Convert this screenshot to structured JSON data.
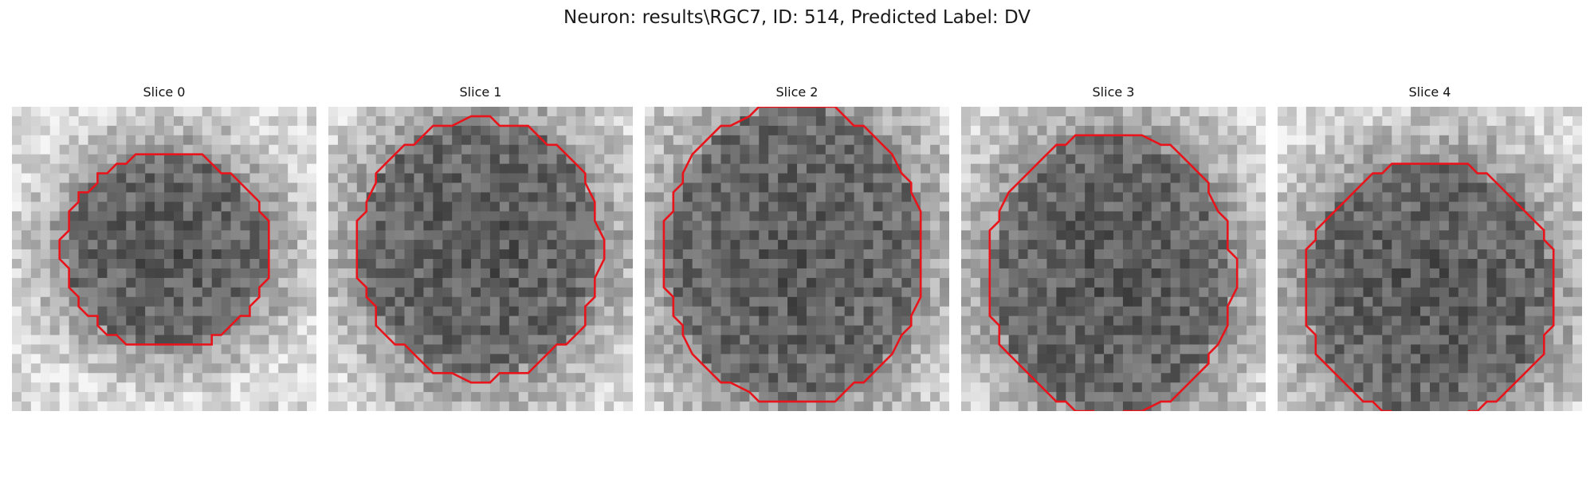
{
  "figure": {
    "title": "Neuron: results\\RGC7, ID: 514, Predicted Label: DV"
  },
  "panels": [
    {
      "title": "Slice 0"
    },
    {
      "title": "Slice 1"
    },
    {
      "title": "Slice 2"
    },
    {
      "title": "Slice 3"
    },
    {
      "title": "Slice 4"
    }
  ],
  "colors": {
    "contour": "#e8141b",
    "background": "#ffffff"
  }
}
